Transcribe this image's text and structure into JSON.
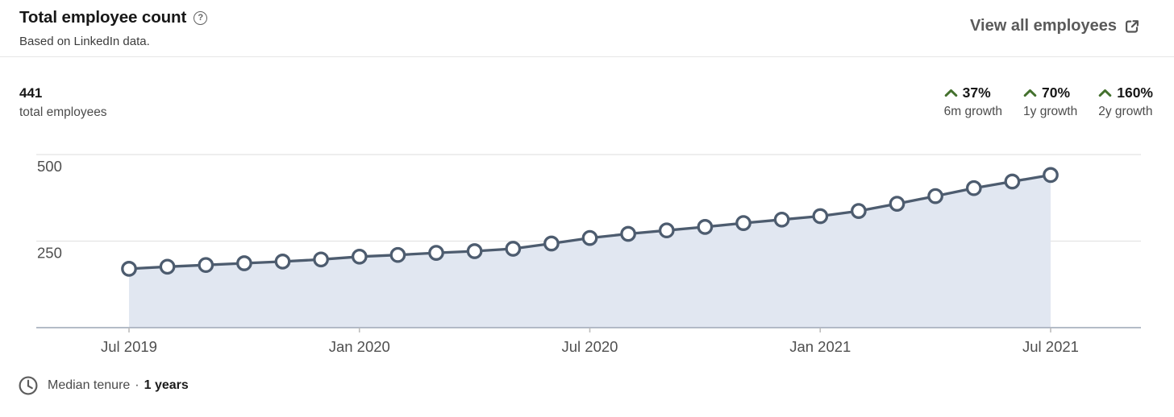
{
  "header": {
    "title": "Total employee count",
    "subtitle": "Based on LinkedIn data.",
    "view_all_label": "View all employees"
  },
  "icons": {
    "help_glyph": "?"
  },
  "stats": {
    "total_value": "441",
    "total_label": "total employees",
    "growth": [
      {
        "value": "37%",
        "label": "6m growth"
      },
      {
        "value": "70%",
        "label": "1y growth"
      },
      {
        "value": "160%",
        "label": "2y growth"
      }
    ]
  },
  "footer": {
    "label": "Median tenure",
    "separator": "·",
    "value": "1 years"
  },
  "colors": {
    "line": "#4d5c6f",
    "area": "#e1e7f1",
    "marker_fill": "#ffffff",
    "grid": "#e4e4e4",
    "axis_line": "#a9b2bf",
    "tick": "#bdbdbd",
    "axis_text": "#4f4f4f",
    "growth_green": "#44712e"
  },
  "chart_data": {
    "type": "area",
    "title": "Total employee count",
    "xlabel": "",
    "ylabel": "",
    "ylim": [
      0,
      500
    ],
    "y_ticks": [
      250,
      500
    ],
    "grid": true,
    "legend": false,
    "x": [
      "Jul 2019",
      "Aug 2019",
      "Sep 2019",
      "Oct 2019",
      "Nov 2019",
      "Dec 2019",
      "Jan 2020",
      "Feb 2020",
      "Mar 2020",
      "Apr 2020",
      "May 2020",
      "Jun 2020",
      "Jul 2020",
      "Aug 2020",
      "Sep 2020",
      "Oct 2020",
      "Nov 2020",
      "Dec 2020",
      "Jan 2021",
      "Feb 2021",
      "Mar 2021",
      "Apr 2021",
      "May 2021",
      "Jun 2021",
      "Jul 2021"
    ],
    "values": [
      170,
      176,
      181,
      186,
      191,
      197,
      205,
      210,
      216,
      221,
      228,
      243,
      259,
      271,
      281,
      291,
      302,
      312,
      322,
      337,
      358,
      380,
      403,
      422,
      441
    ],
    "x_tick_labels": [
      "Jul 2019",
      "Jan 2020",
      "Jul 2020",
      "Jan 2021",
      "Jul 2021"
    ]
  }
}
